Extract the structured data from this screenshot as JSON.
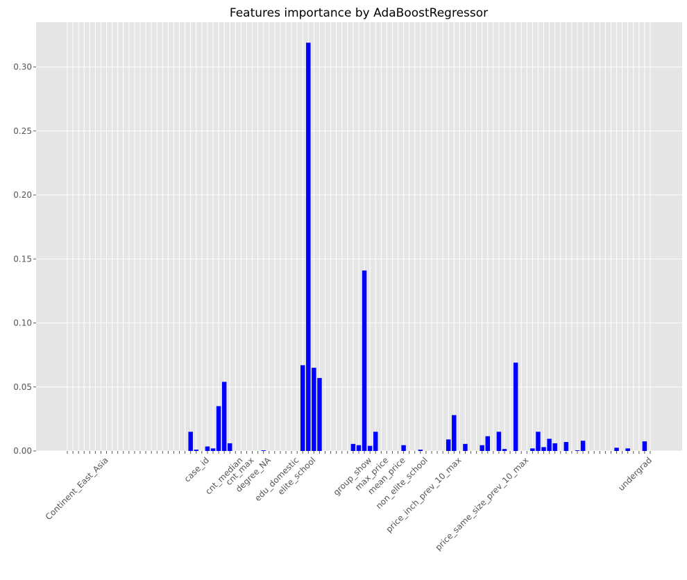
{
  "chart_data": {
    "type": "bar",
    "title": "Features importance by AdaBoostRegressor",
    "categories": [
      null,
      null,
      null,
      null,
      null,
      null,
      null,
      "Continent_East_Asia",
      null,
      null,
      null,
      null,
      null,
      null,
      null,
      null,
      null,
      null,
      null,
      null,
      null,
      null,
      null,
      null,
      null,
      "case_id",
      null,
      null,
      null,
      null,
      null,
      "cnt_median",
      null,
      "cnt_max",
      null,
      null,
      "degree_NA",
      null,
      null,
      null,
      null,
      "edu_domestic",
      null,
      null,
      "elite_school",
      null,
      null,
      null,
      null,
      null,
      null,
      null,
      null,
      null,
      "group_show",
      null,
      null,
      "max_price",
      null,
      null,
      "mean_price",
      null,
      null,
      null,
      "non_elite_school",
      null,
      null,
      null,
      null,
      null,
      "price_inch_prev_10_max",
      null,
      null,
      null,
      null,
      null,
      null,
      null,
      null,
      null,
      null,
      null,
      "price_same_size_prev_10_max",
      null,
      null,
      null,
      null,
      null,
      null,
      null,
      null,
      null,
      null,
      null,
      null,
      null,
      null,
      null,
      null,
      null,
      null,
      null,
      null,
      null,
      "undergrad"
    ],
    "values": [
      0,
      0,
      0,
      0,
      0,
      0,
      0,
      0,
      0,
      0,
      0,
      0,
      0,
      0,
      0,
      0,
      0,
      0,
      0,
      0,
      0,
      0,
      0.015,
      0.001,
      0,
      0.0035,
      0.002,
      0.035,
      0.054,
      0.006,
      0,
      0,
      0,
      0,
      0,
      0.0005,
      0,
      0,
      0,
      0,
      0,
      0,
      0.067,
      0.319,
      0.065,
      0.057,
      0,
      0,
      0,
      0,
      0,
      0.0055,
      0.0045,
      0.141,
      0.004,
      0.015,
      0,
      0,
      0,
      0,
      0.0045,
      0,
      0,
      0.001,
      0,
      0,
      0,
      0,
      0.009,
      0.028,
      0,
      0.0055,
      0,
      0,
      0.0045,
      0.0115,
      0,
      0.015,
      0.0015,
      0,
      0.069,
      0,
      0,
      0.002,
      0.015,
      0.003,
      0.0095,
      0.006,
      0,
      0.007,
      0,
      0.0005,
      0.008,
      0,
      0,
      0,
      0,
      0,
      0.0025,
      0,
      0.002,
      0,
      0,
      0.0075,
      0
    ],
    "color": "#0000ff",
    "ylim": [
      0,
      0.335
    ],
    "yticks": [
      {
        "value": 0,
        "label": "0.00"
      },
      {
        "value": 0.05,
        "label": "0.05"
      },
      {
        "value": 0.1,
        "label": "0.10"
      },
      {
        "value": 0.15,
        "label": "0.15"
      },
      {
        "value": 0.2,
        "label": "0.20"
      },
      {
        "value": 0.25,
        "label": "0.25"
      },
      {
        "value": 0.3,
        "label": "0.30"
      }
    ],
    "grid": true
  }
}
